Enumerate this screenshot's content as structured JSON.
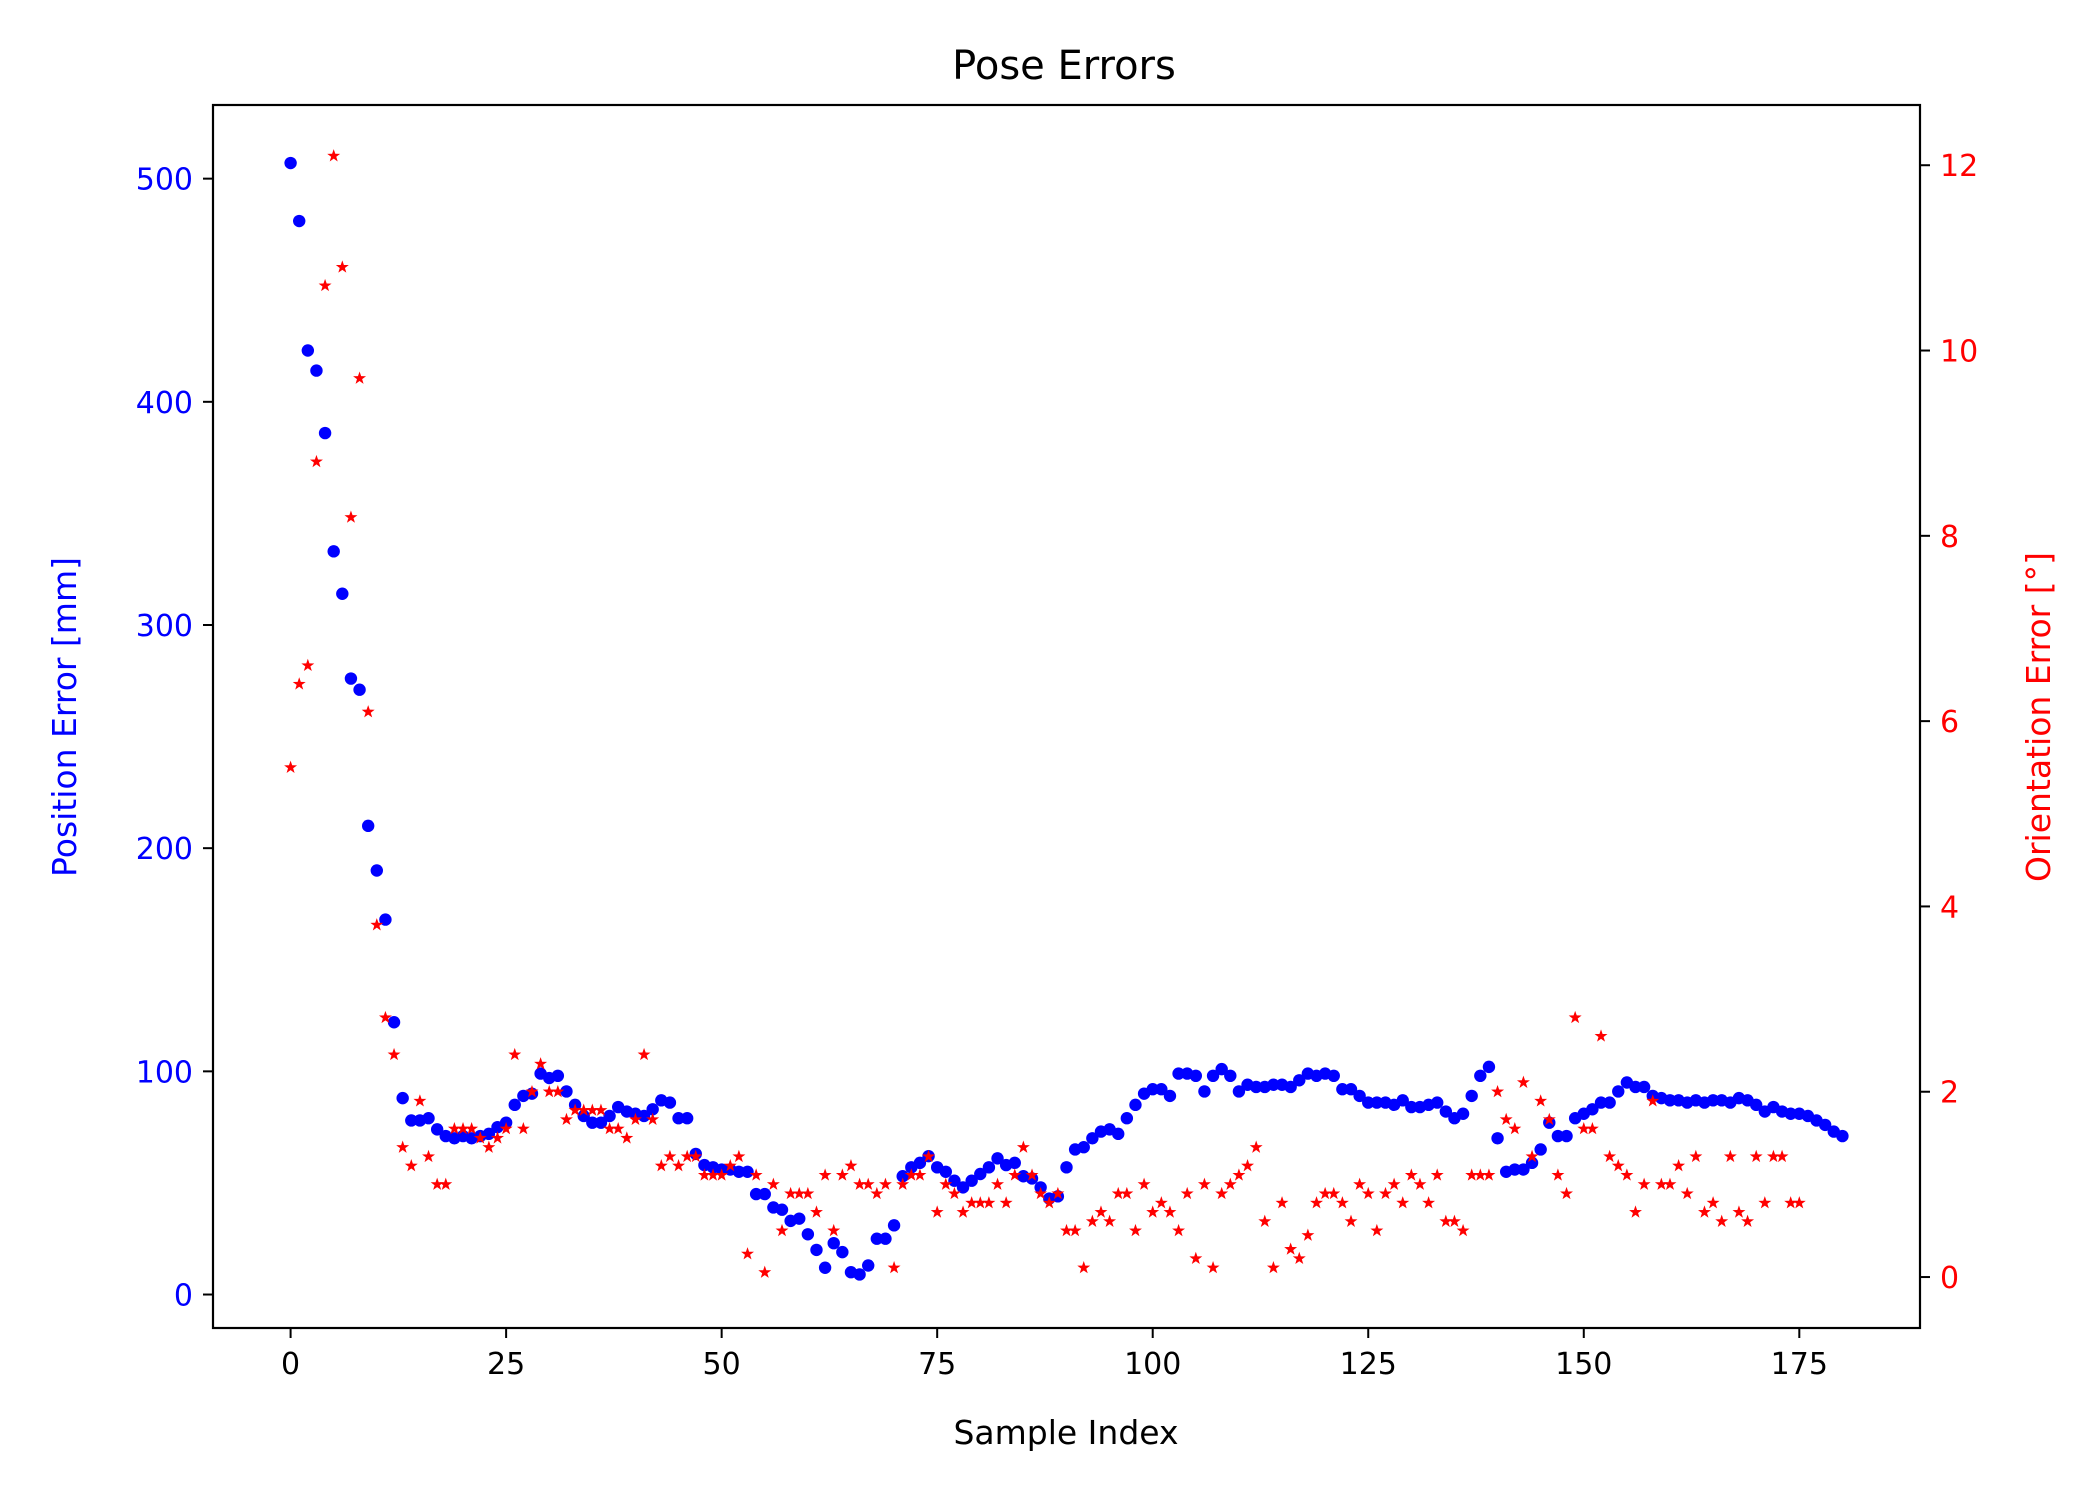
{
  "chart_data": {
    "type": "scatter",
    "title": "Pose Errors",
    "xlabel": "Sample Index",
    "ylabel_left": "Position Error [mm]",
    "ylabel_right": "Orientation Error [°]",
    "xlim": [
      -9,
      189
    ],
    "ylim_left": [
      -15,
      533
    ],
    "ylim_right": [
      -0.55,
      12.65
    ],
    "x_ticks": [
      0,
      25,
      50,
      75,
      100,
      125,
      150,
      175
    ],
    "y_left_ticks": [
      0,
      100,
      200,
      300,
      400,
      500
    ],
    "y_right_ticks": [
      0,
      2,
      4,
      6,
      8,
      10,
      12
    ],
    "grid": false,
    "colors": {
      "position": "#0000ff",
      "orientation": "#ff0000",
      "axis": "#000000"
    },
    "series": [
      {
        "axis": "left",
        "marker": "circle",
        "color": "#0000ff",
        "values": [
          507,
          481,
          423,
          414,
          386,
          333,
          314,
          276,
          271,
          210,
          190,
          168,
          122,
          88,
          78,
          78,
          79,
          74,
          71,
          70,
          71,
          70,
          71,
          72,
          75,
          77,
          85,
          89,
          90,
          99,
          97,
          98,
          91,
          85,
          80,
          77,
          77,
          80,
          84,
          82,
          81,
          80,
          83,
          87,
          86,
          79,
          79,
          63,
          58,
          57,
          56,
          56,
          55,
          55,
          45,
          45,
          39,
          38,
          33,
          34,
          27,
          20,
          12,
          23,
          19,
          10,
          9,
          13,
          25,
          25,
          31,
          53,
          57,
          59,
          62,
          57,
          55,
          51,
          48,
          51,
          54,
          57,
          61,
          58,
          59,
          53,
          52,
          48,
          43,
          44,
          57,
          65,
          66,
          70,
          73,
          74,
          72,
          79,
          85,
          90,
          92,
          92,
          89,
          99,
          99,
          98,
          91,
          98,
          101,
          98,
          91,
          94,
          93,
          93,
          94,
          94,
          93,
          96,
          99,
          98,
          99,
          98,
          92,
          92,
          89,
          86,
          86,
          86,
          85,
          87,
          84,
          84,
          85,
          86,
          82,
          79,
          81,
          89,
          98,
          102,
          70,
          55,
          56,
          56,
          59,
          65,
          77,
          71,
          71,
          79,
          81,
          83,
          86,
          86,
          91,
          95,
          93,
          93,
          89,
          88,
          87,
          87,
          86,
          87,
          86,
          87,
          87,
          86,
          88,
          87,
          85,
          82,
          84,
          82,
          81,
          81,
          80,
          78,
          76,
          73,
          71
        ]
      },
      {
        "axis": "right",
        "marker": "star",
        "color": "#ff0000",
        "values": [
          5.5,
          6.4,
          6.6,
          8.8,
          10.7,
          12.1,
          10.9,
          8.2,
          9.7,
          6.1,
          3.8,
          2.8,
          2.4,
          1.4,
          1.2,
          1.9,
          1.3,
          1.0,
          1.0,
          1.6,
          1.6,
          1.6,
          1.5,
          1.4,
          1.5,
          1.6,
          2.4,
          1.6,
          2.0,
          2.3,
          2.0,
          2.0,
          1.7,
          1.8,
          1.8,
          1.8,
          1.8,
          1.6,
          1.6,
          1.5,
          1.7,
          2.4,
          1.7,
          1.2,
          1.3,
          1.2,
          1.3,
          1.3,
          1.1,
          1.1,
          1.1,
          1.2,
          1.3,
          0.25,
          1.1,
          0.05,
          1.0,
          0.5,
          0.9,
          0.9,
          0.9,
          0.7,
          1.1,
          0.5,
          1.1,
          1.2,
          1.0,
          1.0,
          0.9,
          1.0,
          0.1,
          1.0,
          1.1,
          1.1,
          1.3,
          0.7,
          1.0,
          0.9,
          0.7,
          0.8,
          0.8,
          0.8,
          1.0,
          0.8,
          1.1,
          1.4,
          1.1,
          0.9,
          0.8,
          0.9,
          0.5,
          0.5,
          0.1,
          0.6,
          0.7,
          0.6,
          0.9,
          0.9,
          0.5,
          1.0,
          0.7,
          0.8,
          0.7,
          0.5,
          0.9,
          0.2,
          1.0,
          0.1,
          0.9,
          1.0,
          1.1,
          1.2,
          1.4,
          0.6,
          0.1,
          0.8,
          0.3,
          0.2,
          0.45,
          0.8,
          0.9,
          0.9,
          0.8,
          0.6,
          1.0,
          0.9,
          0.5,
          0.9,
          1.0,
          0.8,
          1.1,
          1.0,
          0.8,
          1.1,
          0.6,
          0.6,
          0.5,
          1.1,
          1.1,
          1.1,
          2.0,
          1.7,
          1.6,
          2.1,
          1.3,
          1.9,
          1.7,
          1.1,
          0.9,
          2.8,
          1.6,
          1.6,
          2.6,
          1.3,
          1.2,
          1.1,
          0.7,
          1.0,
          1.9,
          1.0,
          1.0,
          1.2,
          0.9,
          1.3,
          0.7,
          0.8,
          0.6,
          1.3,
          0.7,
          0.6,
          1.3,
          0.8,
          1.3,
          1.3,
          0.8,
          0.8
        ]
      }
    ]
  }
}
